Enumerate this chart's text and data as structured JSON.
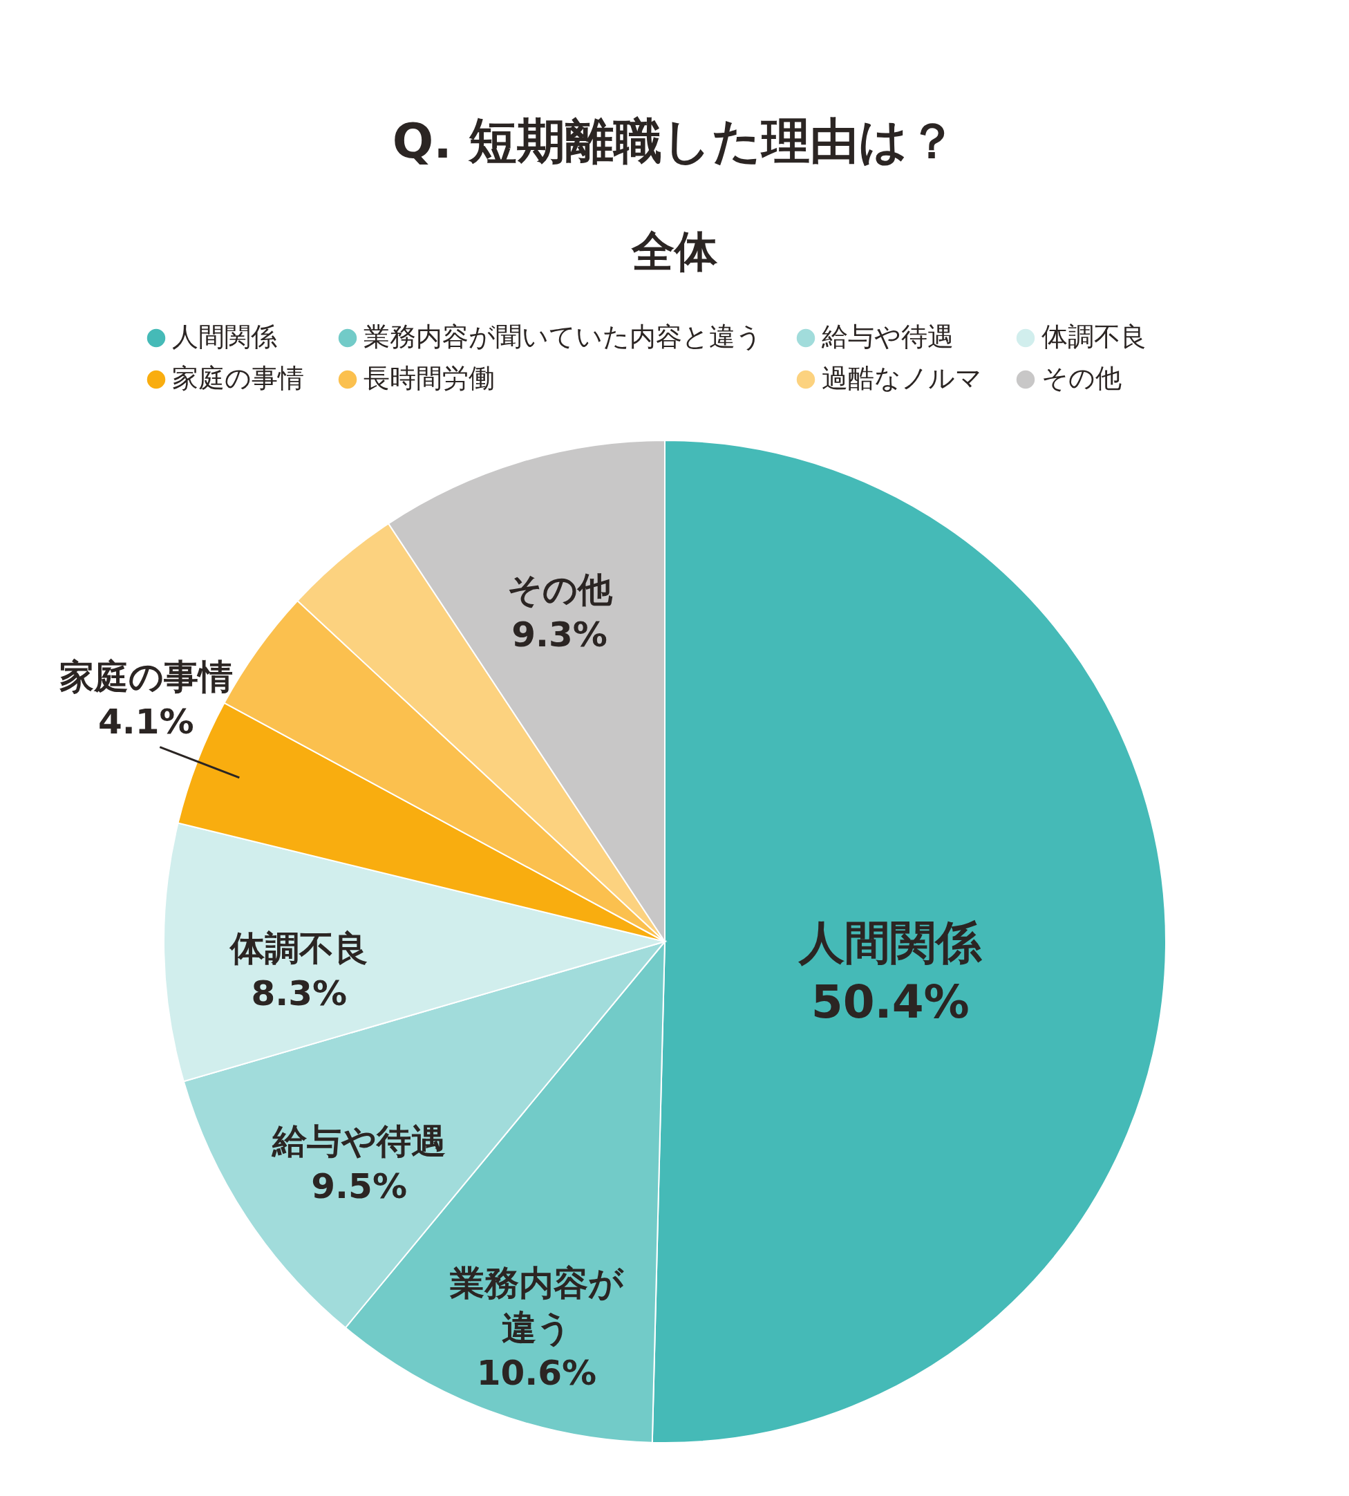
{
  "chart_data": {
    "type": "pie",
    "title": "Q. 短期離職した理由は？",
    "subtitle": "全体",
    "categories": [
      "人間関係",
      "業務内容が聞いていた内容と違う",
      "給与や待遇",
      "体調不良",
      "家庭の事情",
      "長時間労働",
      "過酷なノルマ",
      "その他"
    ],
    "values": [
      50.4,
      10.6,
      9.5,
      8.3,
      4.1,
      4.0,
      3.8,
      9.3
    ],
    "colors": [
      "#45bab7",
      "#72cbc8",
      "#a1dcdb",
      "#d1eeed",
      "#f9ad0f",
      "#fbc04e",
      "#fcd27f",
      "#c8c7c7"
    ],
    "value_labels": [
      "人間関係\n50.4%",
      "業務内容が違う\n10.6%",
      "給与や待遇\n9.5%",
      "体調不良\n8.3%",
      "家庭の事情\n4.1%",
      null,
      null,
      "その他\n9.3%"
    ],
    "legend": "top"
  }
}
